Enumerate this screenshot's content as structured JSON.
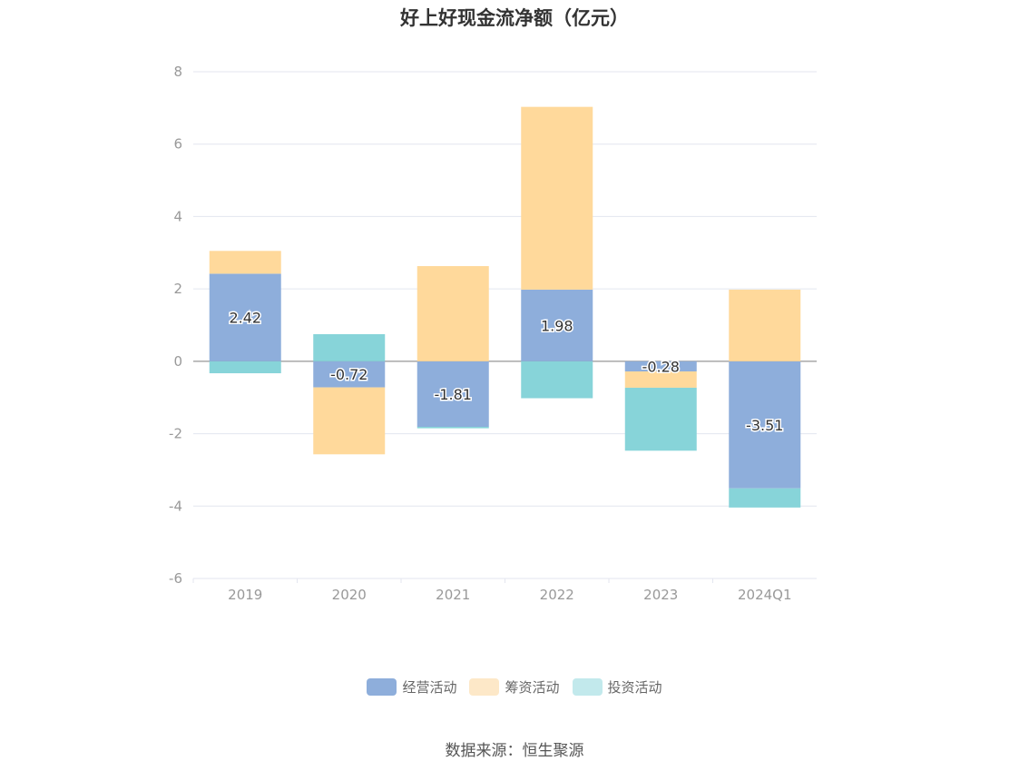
{
  "chart_data": {
    "type": "bar",
    "stacked": true,
    "title": "好上好现金流净额（亿元）",
    "categories": [
      "2019",
      "2020",
      "2021",
      "2022",
      "2023",
      "2024Q1"
    ],
    "series": [
      {
        "name": "经营活动",
        "color": "#8eaedb",
        "legend_color": "#8eaedb",
        "values": [
          2.42,
          -0.72,
          -1.81,
          1.98,
          -0.28,
          -3.51
        ],
        "show_labels": true
      },
      {
        "name": "筹资活动",
        "color": "#ffd99b",
        "legend_color": "#fde8c8",
        "values": [
          0.63,
          -1.85,
          2.63,
          5.05,
          -0.45,
          1.98
        ],
        "show_labels": false
      },
      {
        "name": "投资活动",
        "color": "#87d4d9",
        "legend_color": "#c2e9ec",
        "values": [
          -0.33,
          0.75,
          -0.04,
          -1.02,
          -1.74,
          -0.53
        ],
        "show_labels": false
      }
    ],
    "ylim": [
      -6,
      8
    ],
    "yticks": [
      -6,
      -4,
      -2,
      0,
      2,
      4,
      6,
      8
    ],
    "xlabel": "",
    "ylabel": "",
    "grid": true,
    "legend_position": "bottom-center",
    "source": "数据来源：恒生聚源"
  }
}
